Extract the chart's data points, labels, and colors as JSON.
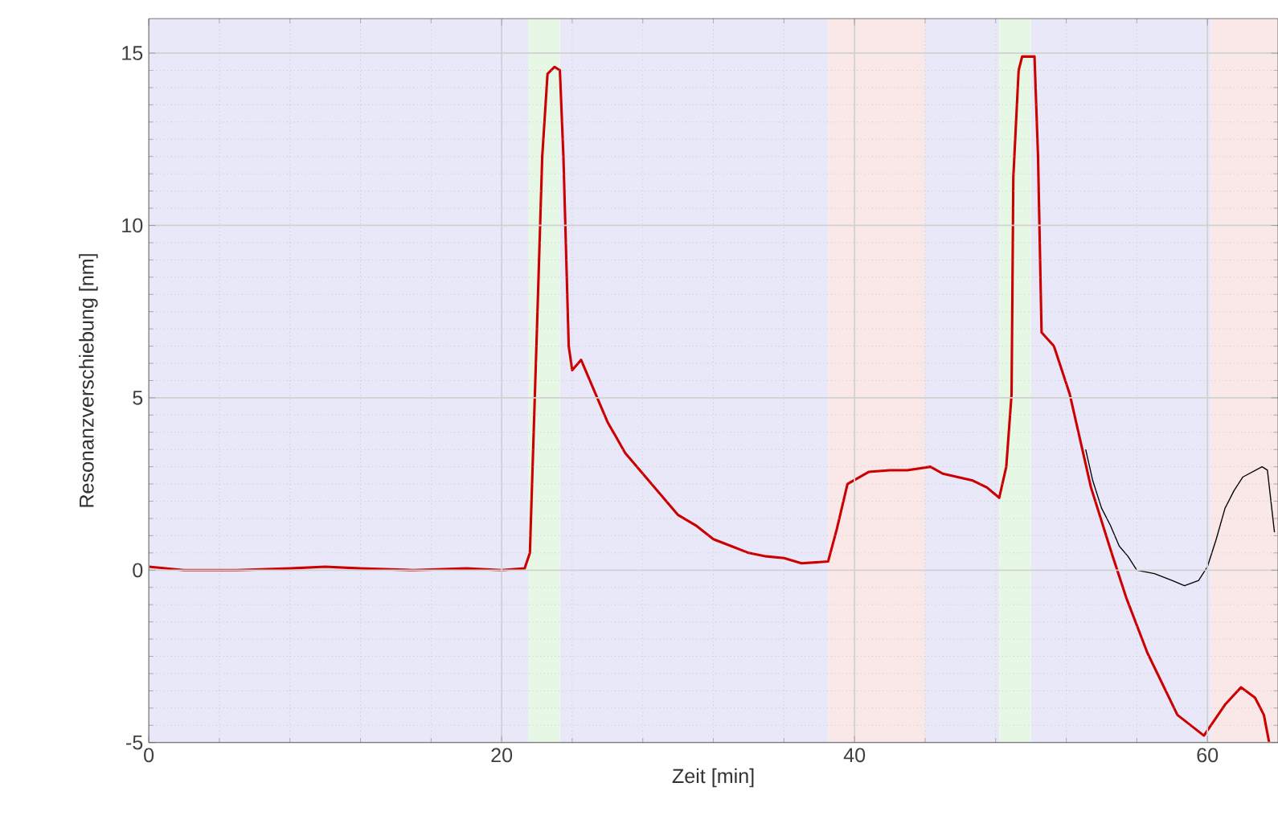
{
  "chart_data": {
    "type": "line",
    "xlabel": "Zeit [min]",
    "ylabel": "Resonanzverschiebung [nm]",
    "xlim": [
      0,
      64
    ],
    "ylim": [
      -5,
      16
    ],
    "xticks": [
      0,
      20,
      40,
      60
    ],
    "yticks": [
      -5,
      0,
      5,
      10,
      15
    ],
    "grid": true,
    "bands": [
      {
        "axis": "x",
        "from": 0,
        "to": 21.5,
        "color": "#e8e8f8"
      },
      {
        "axis": "x",
        "from": 21.5,
        "to": 23.3,
        "color": "#e6f7e6"
      },
      {
        "axis": "x",
        "from": 23.3,
        "to": 38.5,
        "color": "#e8e8f8"
      },
      {
        "axis": "x",
        "from": 38.5,
        "to": 44.0,
        "color": "#fae8e8"
      },
      {
        "axis": "x",
        "from": 44.0,
        "to": 48.2,
        "color": "#e8e8f8"
      },
      {
        "axis": "x",
        "from": 48.2,
        "to": 50.0,
        "color": "#e6f7e6"
      },
      {
        "axis": "x",
        "from": 50.0,
        "to": 60.2,
        "color": "#e8e8f8"
      },
      {
        "axis": "x",
        "from": 60.2,
        "to": 64,
        "color": "#fae8e8"
      }
    ],
    "series": [
      {
        "color": "#000000",
        "x": [
          53.1,
          53.5,
          54,
          54.5,
          55,
          55.5,
          56,
          57,
          58,
          58.7,
          59.5,
          60,
          60.5,
          61,
          61.5,
          62,
          63.1,
          63.4,
          63.8
        ],
        "values": [
          3.5,
          2.6,
          1.8,
          1.3,
          0.7,
          0.4,
          0.0,
          -0.1,
          -0.3,
          -0.45,
          -0.3,
          0.1,
          0.9,
          1.8,
          2.3,
          2.7,
          3.0,
          2.9,
          1.1
        ]
      },
      {
        "color": "#cc0000",
        "x": [
          0,
          2,
          5,
          8,
          10,
          12,
          15,
          18,
          20,
          21.3,
          21.6,
          22,
          22.3,
          22.6,
          23.0,
          23.3,
          23.5,
          23.8,
          24,
          24.5,
          25,
          26,
          27,
          28,
          29,
          30,
          31,
          32,
          33,
          34,
          35,
          36,
          37,
          38.5,
          39,
          39.6,
          40.8,
          42,
          43,
          44.3,
          45,
          46.7,
          47.5,
          48.2,
          48.6,
          48.9,
          49.0,
          49.3,
          49.5,
          50.2,
          50.4,
          50.6,
          51.3,
          52.2,
          53.4,
          54.6,
          55.4,
          56.6,
          58.3,
          59.8,
          61,
          61.9,
          62.7,
          63.2,
          63.5
        ],
        "values": [
          0.1,
          0,
          0,
          0.05,
          0.1,
          0.05,
          0,
          0.05,
          0,
          0.05,
          0.5,
          7,
          12,
          14.4,
          14.6,
          14.5,
          12,
          6.5,
          5.8,
          6.1,
          5.5,
          4.3,
          3.4,
          2.8,
          2.2,
          1.6,
          1.3,
          0.9,
          0.7,
          0.5,
          0.4,
          0.35,
          0.2,
          0.25,
          1.2,
          2.5,
          2.85,
          2.9,
          2.9,
          3.0,
          2.8,
          2.6,
          2.4,
          2.1,
          3.0,
          5.1,
          11.4,
          14.5,
          14.9,
          14.9,
          12,
          6.9,
          6.5,
          5.1,
          2.4,
          0.45,
          -0.8,
          -2.4,
          -4.2,
          -4.8,
          -3.9,
          -3.4,
          -3.7,
          -4.2,
          -5
        ]
      }
    ]
  }
}
